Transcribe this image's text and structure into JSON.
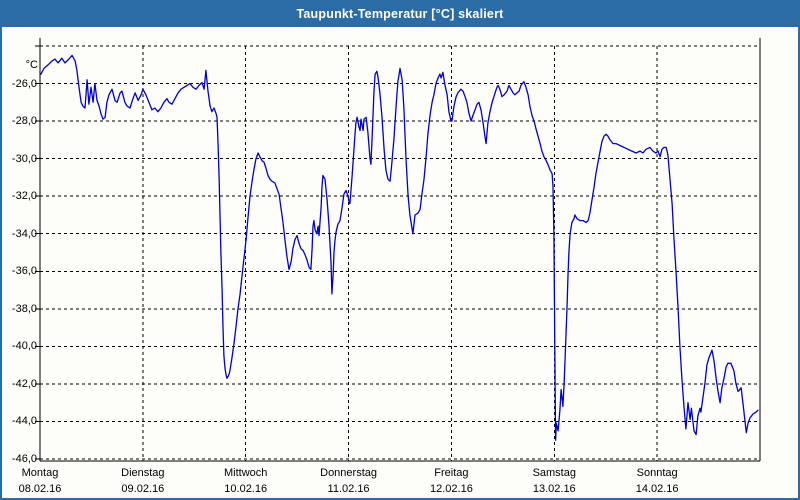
{
  "window": {
    "title": "Taupunkt-Temperatur [°C] skaliert"
  },
  "colors": {
    "title_bar": "#2a6ca5",
    "window_border": "#2a6ca5",
    "line": "#0000cc",
    "grid": "#000000",
    "plot_background": "#fdfdfa",
    "title_text": "#ffffff",
    "label_text": "#000000"
  },
  "chart_data": {
    "type": "line",
    "title": "Taupunkt-Temperatur [°C] skaliert",
    "unit_label": "°C",
    "grid": true,
    "legend": "none",
    "line_color": "#0000cc",
    "x_axis": {
      "kind": "time",
      "hours_range": [
        0,
        168
      ],
      "days": [
        {
          "name": "Montag",
          "date": "08.02.16"
        },
        {
          "name": "Dienstag",
          "date": "09.02.16"
        },
        {
          "name": "Mittwoch",
          "date": "10.02.16"
        },
        {
          "name": "Donnerstag",
          "date": "11.02.16"
        },
        {
          "name": "Freitag",
          "date": "12.02.16"
        },
        {
          "name": "Samstag",
          "date": "13.02.16"
        },
        {
          "name": "Sonntag",
          "date": "14.02.16"
        }
      ]
    },
    "y_axis": {
      "unit": "°C",
      "range": [
        -46,
        -24
      ],
      "gridline_step": 2,
      "ticks": [
        {
          "value": -26,
          "label": "-26,0"
        },
        {
          "value": -28,
          "label": "-28,0"
        },
        {
          "value": -30,
          "label": "-30,0"
        },
        {
          "value": -32,
          "label": "-32,0"
        },
        {
          "value": -34,
          "label": "-34,0"
        },
        {
          "value": -36,
          "label": "-36,0"
        },
        {
          "value": -38,
          "label": "-38,0"
        },
        {
          "value": -40,
          "label": "-40,0"
        },
        {
          "value": -42,
          "label": "-42,0"
        },
        {
          "value": -44,
          "label": "-44,0"
        },
        {
          "value": -46,
          "label": "-46,0"
        }
      ]
    },
    "series_name": "Taupunkt-Temperatur",
    "points": [
      [
        0.2,
        -25.5
      ],
      [
        0.9,
        -25.2
      ],
      [
        1.9,
        -25.0
      ],
      [
        2.8,
        -24.8
      ],
      [
        3.5,
        -24.7
      ],
      [
        4.2,
        -24.9
      ],
      [
        5.1,
        -24.65
      ],
      [
        5.8,
        -24.9
      ],
      [
        6.5,
        -24.75
      ],
      [
        7.5,
        -24.5
      ],
      [
        8.2,
        -24.8
      ],
      [
        8.6,
        -25.3
      ],
      [
        9.1,
        -26.2
      ],
      [
        9.6,
        -27.0
      ],
      [
        10.0,
        -27.2
      ],
      [
        10.5,
        -27.3
      ],
      [
        11.0,
        -25.8
      ],
      [
        11.4,
        -27.1
      ],
      [
        11.9,
        -26.2
      ],
      [
        12.4,
        -27.0
      ],
      [
        12.8,
        -26.0
      ],
      [
        13.3,
        -26.9
      ],
      [
        13.8,
        -27.2
      ],
      [
        14.2,
        -27.6
      ],
      [
        14.7,
        -27.9
      ],
      [
        15.2,
        -27.8
      ],
      [
        15.6,
        -27.0
      ],
      [
        16.1,
        -26.6
      ],
      [
        16.8,
        -26.3
      ],
      [
        17.5,
        -26.9
      ],
      [
        18.0,
        -27.0
      ],
      [
        18.7,
        -26.5
      ],
      [
        19.1,
        -26.4
      ],
      [
        19.8,
        -27.0
      ],
      [
        20.3,
        -27.2
      ],
      [
        21.0,
        -27.3
      ],
      [
        21.7,
        -26.8
      ],
      [
        22.2,
        -26.5
      ],
      [
        22.9,
        -26.9
      ],
      [
        23.6,
        -26.6
      ],
      [
        24.0,
        -26.3
      ],
      [
        24.7,
        -26.6
      ],
      [
        25.4,
        -27.0
      ],
      [
        26.1,
        -27.4
      ],
      [
        26.8,
        -27.3
      ],
      [
        27.5,
        -27.5
      ],
      [
        28.2,
        -27.3
      ],
      [
        28.9,
        -27.0
      ],
      [
        29.6,
        -26.8
      ],
      [
        30.1,
        -27.0
      ],
      [
        30.8,
        -27.1
      ],
      [
        31.5,
        -26.8
      ],
      [
        32.2,
        -26.5
      ],
      [
        32.9,
        -26.3
      ],
      [
        33.6,
        -26.2
      ],
      [
        34.3,
        -26.1
      ],
      [
        35.0,
        -26.0
      ],
      [
        35.7,
        -26.2
      ],
      [
        36.4,
        -26.3
      ],
      [
        37.1,
        -26.1
      ],
      [
        37.8,
        -25.95
      ],
      [
        38.3,
        -26.3
      ],
      [
        38.7,
        -25.3
      ],
      [
        39.2,
        -26.4
      ],
      [
        39.7,
        -27.2
      ],
      [
        40.1,
        -27.5
      ],
      [
        40.6,
        -27.3
      ],
      [
        41.1,
        -27.6
      ],
      [
        41.3,
        -27.8
      ],
      [
        41.5,
        -29.0
      ],
      [
        41.8,
        -31.0
      ],
      [
        42.0,
        -33.0
      ],
      [
        42.2,
        -35.0
      ],
      [
        42.5,
        -37.0
      ],
      [
        42.7,
        -39.0
      ],
      [
        42.9,
        -40.5
      ],
      [
        43.2,
        -41.2
      ],
      [
        43.4,
        -41.5
      ],
      [
        43.6,
        -41.7
      ],
      [
        43.9,
        -41.6
      ],
      [
        44.1,
        -41.5
      ],
      [
        44.3,
        -41.3
      ],
      [
        44.8,
        -40.6
      ],
      [
        45.3,
        -39.8
      ],
      [
        45.7,
        -39.0
      ],
      [
        46.2,
        -38.0
      ],
      [
        46.7,
        -37.2
      ],
      [
        47.1,
        -36.3
      ],
      [
        47.6,
        -35.3
      ],
      [
        48.1,
        -34.3
      ],
      [
        48.5,
        -33.2
      ],
      [
        49.0,
        -32.0
      ],
      [
        49.5,
        -31.2
      ],
      [
        49.9,
        -30.6
      ],
      [
        50.4,
        -30.0
      ],
      [
        50.9,
        -29.7
      ],
      [
        51.3,
        -29.9
      ],
      [
        51.8,
        -30.1
      ],
      [
        52.3,
        -30.2
      ],
      [
        52.7,
        -30.5
      ],
      [
        53.2,
        -30.9
      ],
      [
        53.7,
        -31.1
      ],
      [
        54.1,
        -31.2
      ],
      [
        54.8,
        -31.3
      ],
      [
        55.3,
        -31.6
      ],
      [
        55.8,
        -31.9
      ],
      [
        56.2,
        -32.6
      ],
      [
        56.7,
        -33.4
      ],
      [
        57.2,
        -34.4
      ],
      [
        57.6,
        -35.2
      ],
      [
        58.1,
        -35.9
      ],
      [
        58.6,
        -35.5
      ],
      [
        59.0,
        -34.8
      ],
      [
        59.5,
        -34.3
      ],
      [
        60.0,
        -34.1
      ],
      [
        60.4,
        -34.5
      ],
      [
        60.9,
        -34.8
      ],
      [
        61.4,
        -34.9
      ],
      [
        61.8,
        -35.1
      ],
      [
        62.3,
        -35.4
      ],
      [
        62.8,
        -35.8
      ],
      [
        63.2,
        -35.9
      ],
      [
        63.5,
        -34.8
      ],
      [
        63.7,
        -33.6
      ],
      [
        63.9,
        -33.3
      ],
      [
        64.2,
        -33.8
      ],
      [
        64.6,
        -34.0
      ],
      [
        64.9,
        -33.6
      ],
      [
        65.1,
        -34.1
      ],
      [
        65.6,
        -32.6
      ],
      [
        65.8,
        -31.5
      ],
      [
        66.0,
        -30.9
      ],
      [
        66.5,
        -31.1
      ],
      [
        67.0,
        -32.2
      ],
      [
        67.4,
        -33.5
      ],
      [
        67.9,
        -35.5
      ],
      [
        68.1,
        -37.2
      ],
      [
        68.4,
        -36.2
      ],
      [
        68.6,
        -35.0
      ],
      [
        68.8,
        -34.4
      ],
      [
        69.1,
        -33.9
      ],
      [
        69.5,
        -33.5
      ],
      [
        70.0,
        -33.3
      ],
      [
        70.5,
        -32.6
      ],
      [
        70.9,
        -31.9
      ],
      [
        71.4,
        -31.7
      ],
      [
        71.9,
        -32.0
      ],
      [
        72.1,
        -32.3
      ],
      [
        72.3,
        -32.4
      ],
      [
        72.8,
        -31.0
      ],
      [
        73.3,
        -29.4
      ],
      [
        73.5,
        -28.7
      ],
      [
        73.7,
        -28.1
      ],
      [
        74.0,
        -27.8
      ],
      [
        74.4,
        -28.3
      ],
      [
        74.7,
        -28.5
      ],
      [
        74.9,
        -27.9
      ],
      [
        75.4,
        -28.5
      ],
      [
        75.6,
        -27.9
      ],
      [
        76.1,
        -27.8
      ],
      [
        76.5,
        -28.6
      ],
      [
        77.0,
        -30.0
      ],
      [
        77.2,
        -30.3
      ],
      [
        77.5,
        -28.9
      ],
      [
        77.9,
        -26.5
      ],
      [
        78.2,
        -25.5
      ],
      [
        78.6,
        -25.35
      ],
      [
        78.9,
        -25.7
      ],
      [
        79.3,
        -26.5
      ],
      [
        79.8,
        -27.8
      ],
      [
        80.3,
        -29.5
      ],
      [
        80.7,
        -30.6
      ],
      [
        81.2,
        -31.1
      ],
      [
        81.7,
        -31.2
      ],
      [
        82.1,
        -30.2
      ],
      [
        82.6,
        -28.9
      ],
      [
        83.1,
        -27.2
      ],
      [
        83.5,
        -25.9
      ],
      [
        84.0,
        -25.2
      ],
      [
        84.5,
        -25.8
      ],
      [
        84.9,
        -27.3
      ],
      [
        85.4,
        -30.0
      ],
      [
        85.9,
        -32.0
      ],
      [
        86.3,
        -33.0
      ],
      [
        86.8,
        -33.7
      ],
      [
        87.0,
        -34.0
      ],
      [
        87.5,
        -33.0
      ],
      [
        88.2,
        -32.9
      ],
      [
        88.7,
        -32.7
      ],
      [
        89.1,
        -31.9
      ],
      [
        89.6,
        -31.1
      ],
      [
        90.1,
        -29.9
      ],
      [
        90.5,
        -28.7
      ],
      [
        91.0,
        -27.7
      ],
      [
        91.5,
        -27.0
      ],
      [
        91.9,
        -26.6
      ],
      [
        92.4,
        -26.0
      ],
      [
        92.9,
        -25.7
      ],
      [
        93.3,
        -25.5
      ],
      [
        93.6,
        -25.7
      ],
      [
        94.0,
        -25.4
      ],
      [
        94.5,
        -26.1
      ],
      [
        95.0,
        -26.6
      ],
      [
        95.4,
        -27.5
      ],
      [
        95.9,
        -28.0
      ],
      [
        96.1,
        -28.0
      ],
      [
        96.6,
        -27.2
      ],
      [
        97.1,
        -26.7
      ],
      [
        97.5,
        -26.5
      ],
      [
        98.2,
        -26.3
      ],
      [
        98.7,
        -26.4
      ],
      [
        99.2,
        -26.7
      ],
      [
        99.6,
        -27.0
      ],
      [
        100.1,
        -27.6
      ],
      [
        100.6,
        -28.0
      ],
      [
        101.0,
        -27.7
      ],
      [
        101.5,
        -27.4
      ],
      [
        102.0,
        -27.1
      ],
      [
        102.4,
        -27.0
      ],
      [
        102.9,
        -27.4
      ],
      [
        103.4,
        -28.1
      ],
      [
        103.8,
        -28.8
      ],
      [
        104.1,
        -29.2
      ],
      [
        104.5,
        -28.1
      ],
      [
        105.0,
        -27.5
      ],
      [
        105.5,
        -27.0
      ],
      [
        106.2,
        -26.5
      ],
      [
        106.6,
        -26.2
      ],
      [
        106.9,
        -26.1
      ],
      [
        107.3,
        -26.3
      ],
      [
        107.8,
        -26.7
      ],
      [
        108.3,
        -26.6
      ],
      [
        109.0,
        -26.4
      ],
      [
        109.4,
        -26.1
      ],
      [
        109.9,
        -26.3
      ],
      [
        110.4,
        -26.5
      ],
      [
        110.8,
        -26.6
      ],
      [
        111.3,
        -26.5
      ],
      [
        111.8,
        -26.4
      ],
      [
        112.2,
        -26.1
      ],
      [
        112.9,
        -25.9
      ],
      [
        113.4,
        -26.2
      ],
      [
        113.9,
        -26.6
      ],
      [
        114.3,
        -27.2
      ],
      [
        114.8,
        -27.7
      ],
      [
        115.3,
        -28.0
      ],
      [
        115.7,
        -28.4
      ],
      [
        116.2,
        -28.8
      ],
      [
        116.7,
        -29.2
      ],
      [
        117.1,
        -29.6
      ],
      [
        117.6,
        -29.9
      ],
      [
        118.1,
        -30.1
      ],
      [
        118.5,
        -30.3
      ],
      [
        119.0,
        -30.6
      ],
      [
        119.5,
        -30.8
      ],
      [
        119.7,
        -31.5
      ],
      [
        119.9,
        -34.0
      ],
      [
        120.05,
        -38.0
      ],
      [
        120.2,
        -42.0
      ],
      [
        120.3,
        -45.0
      ],
      [
        120.5,
        -44.1
      ],
      [
        120.9,
        -44.5
      ],
      [
        121.3,
        -43.4
      ],
      [
        121.6,
        -42.3
      ],
      [
        122.0,
        -43.2
      ],
      [
        122.3,
        -42.0
      ],
      [
        122.5,
        -40.8
      ],
      [
        122.7,
        -39.5
      ],
      [
        123.0,
        -37.8
      ],
      [
        123.2,
        -36.2
      ],
      [
        123.4,
        -35.0
      ],
      [
        123.7,
        -34.0
      ],
      [
        123.9,
        -33.7
      ],
      [
        124.1,
        -33.4
      ],
      [
        124.6,
        -33.2
      ],
      [
        124.8,
        -33.0
      ],
      [
        125.3,
        -33.2
      ],
      [
        126.0,
        -33.3
      ],
      [
        126.7,
        -33.3
      ],
      [
        127.4,
        -33.4
      ],
      [
        127.9,
        -33.3
      ],
      [
        128.3,
        -32.9
      ],
      [
        128.8,
        -32.2
      ],
      [
        129.3,
        -31.5
      ],
      [
        129.7,
        -30.8
      ],
      [
        130.2,
        -30.2
      ],
      [
        130.7,
        -29.6
      ],
      [
        131.1,
        -29.1
      ],
      [
        131.6,
        -28.8
      ],
      [
        132.1,
        -28.7
      ],
      [
        132.5,
        -28.8
      ],
      [
        133.0,
        -29.0
      ],
      [
        133.7,
        -29.2
      ],
      [
        134.4,
        -29.2
      ],
      [
        135.3,
        -29.3
      ],
      [
        136.3,
        -29.4
      ],
      [
        137.2,
        -29.5
      ],
      [
        138.1,
        -29.6
      ],
      [
        139.1,
        -29.7
      ],
      [
        140.0,
        -29.6
      ],
      [
        140.7,
        -29.7
      ],
      [
        141.4,
        -29.5
      ],
      [
        142.3,
        -29.4
      ],
      [
        143.0,
        -29.6
      ],
      [
        143.7,
        -29.7
      ],
      [
        144.2,
        -29.6
      ],
      [
        144.7,
        -29.9
      ],
      [
        145.1,
        -29.5
      ],
      [
        145.6,
        -29.4
      ],
      [
        146.1,
        -29.4
      ],
      [
        146.5,
        -29.8
      ],
      [
        147.0,
        -31.1
      ],
      [
        147.5,
        -32.4
      ],
      [
        147.9,
        -34.2
      ],
      [
        148.4,
        -36.0
      ],
      [
        148.9,
        -38.0
      ],
      [
        149.3,
        -40.0
      ],
      [
        149.8,
        -41.8
      ],
      [
        150.3,
        -43.3
      ],
      [
        150.7,
        -44.4
      ],
      [
        151.2,
        -43.0
      ],
      [
        151.7,
        -43.9
      ],
      [
        152.0,
        -43.3
      ],
      [
        152.6,
        -44.5
      ],
      [
        153.1,
        -44.7
      ],
      [
        153.5,
        -43.7
      ],
      [
        154.0,
        -43.3
      ],
      [
        154.2,
        -43.5
      ],
      [
        154.7,
        -42.7
      ],
      [
        155.2,
        -41.9
      ],
      [
        155.6,
        -41.0
      ],
      [
        156.1,
        -40.6
      ],
      [
        156.8,
        -40.2
      ],
      [
        157.3,
        -40.8
      ],
      [
        157.7,
        -41.6
      ],
      [
        158.2,
        -42.4
      ],
      [
        158.7,
        -43.0
      ],
      [
        159.1,
        -42.2
      ],
      [
        159.6,
        -41.7
      ],
      [
        160.1,
        -41.1
      ],
      [
        160.5,
        -40.9
      ],
      [
        161.2,
        -40.9
      ],
      [
        161.9,
        -41.3
      ],
      [
        162.4,
        -42.0
      ],
      [
        162.9,
        -42.4
      ],
      [
        163.3,
        -42.3
      ],
      [
        163.6,
        -42.2
      ],
      [
        164.0,
        -43.0
      ],
      [
        164.4,
        -43.8
      ],
      [
        164.8,
        -44.6
      ],
      [
        165.2,
        -44.1
      ],
      [
        165.7,
        -43.8
      ],
      [
        166.4,
        -43.6
      ],
      [
        167.1,
        -43.5
      ],
      [
        167.5,
        -43.4
      ]
    ]
  }
}
